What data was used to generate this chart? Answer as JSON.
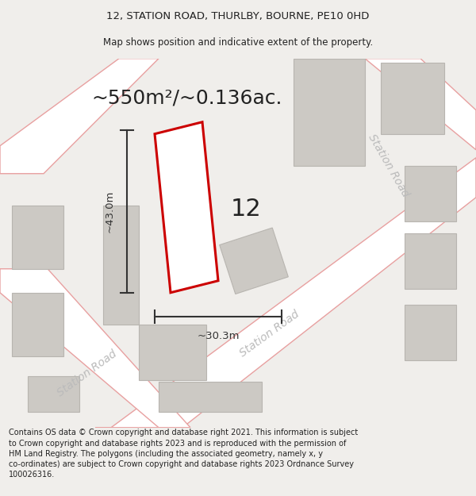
{
  "title_line1": "12, STATION ROAD, THURLBY, BOURNE, PE10 0HD",
  "title_line2": "Map shows position and indicative extent of the property.",
  "area_text": "~550m²/~0.136ac.",
  "label_number": "12",
  "dim_height": "~43.0m",
  "dim_width": "~30.3m",
  "footer_text": "Contains OS data © Crown copyright and database right 2021. This information is subject to Crown copyright and database rights 2023 and is reproduced with the permission of HM Land Registry. The polygons (including the associated geometry, namely x, y co-ordinates) are subject to Crown copyright and database rights 2023 Ordnance Survey 100026316.",
  "bg_color": "#f0eeeb",
  "map_bg": "#eeece8",
  "road_fill": "#ffffff",
  "road_stroke": "#e8a0a0",
  "building_fill": "#ccc9c4",
  "building_stroke": "#b8b5b0",
  "plot_stroke": "#cc0000",
  "plot_fill": "#ffffff",
  "dim_color": "#333333",
  "text_color": "#222222",
  "road_label_color": "#bbbbbb",
  "title_color": "#222222",
  "footer_color": "#222222",
  "title_fontsize": 9.5,
  "subtitle_fontsize": 8.5,
  "area_fontsize": 18,
  "label_fontsize": 22,
  "dim_fontsize": 9.5,
  "road_label_fontsize": 10,
  "footer_fontsize": 7.0
}
